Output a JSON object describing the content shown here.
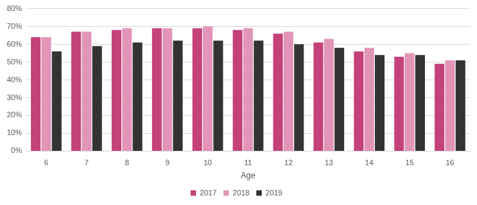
{
  "chart_data": {
    "type": "bar",
    "x_label": "Age",
    "categories": [
      "6",
      "7",
      "8",
      "9",
      "10",
      "11",
      "12",
      "13",
      "14",
      "15",
      "16"
    ],
    "series": [
      {
        "name": "2017",
        "color": "#c4417a",
        "values": [
          64,
          67,
          68,
          69,
          69,
          68,
          66,
          61,
          56,
          53,
          49
        ]
      },
      {
        "name": "2018",
        "color": "#e295b6",
        "values": [
          64,
          67,
          69,
          69,
          70,
          69,
          67,
          63,
          58,
          55,
          51
        ]
      },
      {
        "name": "2019",
        "color": "#333333",
        "values": [
          56,
          59,
          61,
          62,
          62,
          62,
          60,
          58,
          54,
          54,
          51
        ]
      }
    ],
    "ylim": [
      0,
      80
    ],
    "yticks": [
      {
        "value": 0,
        "label": "0%"
      },
      {
        "value": 10,
        "label": "10%"
      },
      {
        "value": 20,
        "label": "20%"
      },
      {
        "value": 30,
        "label": "30%"
      },
      {
        "value": 40,
        "label": "40%"
      },
      {
        "value": 50,
        "label": "50%"
      },
      {
        "value": 60,
        "label": "60%"
      },
      {
        "value": 70,
        "label": "70%"
      },
      {
        "value": 80,
        "label": "80%"
      }
    ],
    "grid": true,
    "legend": "bottom"
  }
}
